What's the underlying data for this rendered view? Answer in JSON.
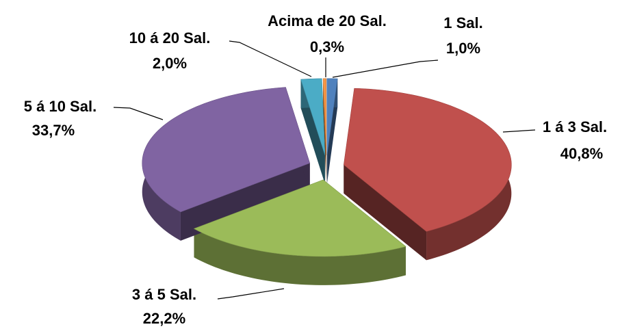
{
  "chart_data": {
    "type": "pie",
    "categories": [
      "1 Sal.",
      "1 á 3 Sal.",
      "3 á 5 Sal.",
      "5 á 10 Sal.",
      "10 á 20 Sal.",
      "Acima de 20 Sal."
    ],
    "values": [
      1.0,
      40.8,
      22.2,
      33.7,
      2.0,
      0.3
    ],
    "value_labels": [
      "1,0%",
      "40,8%",
      "22,2%",
      "33,7%",
      "2,0%",
      "0,3%"
    ],
    "colors": [
      "#4f81bd",
      "#c0504d",
      "#9bbb59",
      "#8064a2",
      "#4bacc6",
      "#f79646"
    ]
  }
}
